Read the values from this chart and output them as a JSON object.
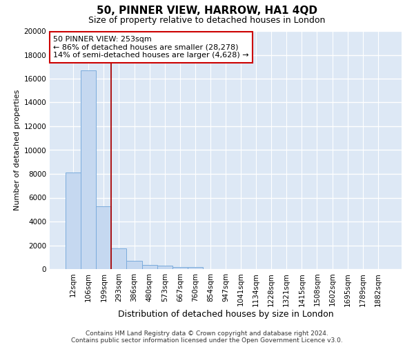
{
  "title": "50, PINNER VIEW, HARROW, HA1 4QD",
  "subtitle": "Size of property relative to detached houses in London",
  "xlabel": "Distribution of detached houses by size in London",
  "ylabel": "Number of detached properties",
  "categories": [
    "12sqm",
    "106sqm",
    "199sqm",
    "293sqm",
    "386sqm",
    "480sqm",
    "573sqm",
    "667sqm",
    "760sqm",
    "854sqm",
    "947sqm",
    "1041sqm",
    "1134sqm",
    "1228sqm",
    "1321sqm",
    "1415sqm",
    "1508sqm",
    "1602sqm",
    "1695sqm",
    "1789sqm",
    "1882sqm"
  ],
  "values": [
    8100,
    16700,
    5300,
    1750,
    700,
    320,
    270,
    190,
    180,
    0,
    0,
    0,
    0,
    0,
    0,
    0,
    0,
    0,
    0,
    0,
    0
  ],
  "bar_color": "#c5d8f0",
  "bar_edge_color": "#7aabdc",
  "vline_color": "#aa0000",
  "annotation_text": "50 PINNER VIEW: 253sqm\n← 86% of detached houses are smaller (28,278)\n14% of semi-detached houses are larger (4,628) →",
  "annotation_box_facecolor": "#ffffff",
  "annotation_box_edgecolor": "#cc0000",
  "ylim": [
    0,
    20000
  ],
  "yticks": [
    0,
    2000,
    4000,
    6000,
    8000,
    10000,
    12000,
    14000,
    16000,
    18000,
    20000
  ],
  "fig_facecolor": "#ffffff",
  "ax_facecolor": "#dde8f5",
  "grid_color": "#ffffff",
  "footer_line1": "Contains HM Land Registry data © Crown copyright and database right 2024.",
  "footer_line2": "Contains public sector information licensed under the Open Government Licence v3.0.",
  "title_fontsize": 11,
  "subtitle_fontsize": 9,
  "xlabel_fontsize": 9,
  "ylabel_fontsize": 8,
  "tick_fontsize": 7.5,
  "annotation_fontsize": 8,
  "footer_fontsize": 6.5
}
